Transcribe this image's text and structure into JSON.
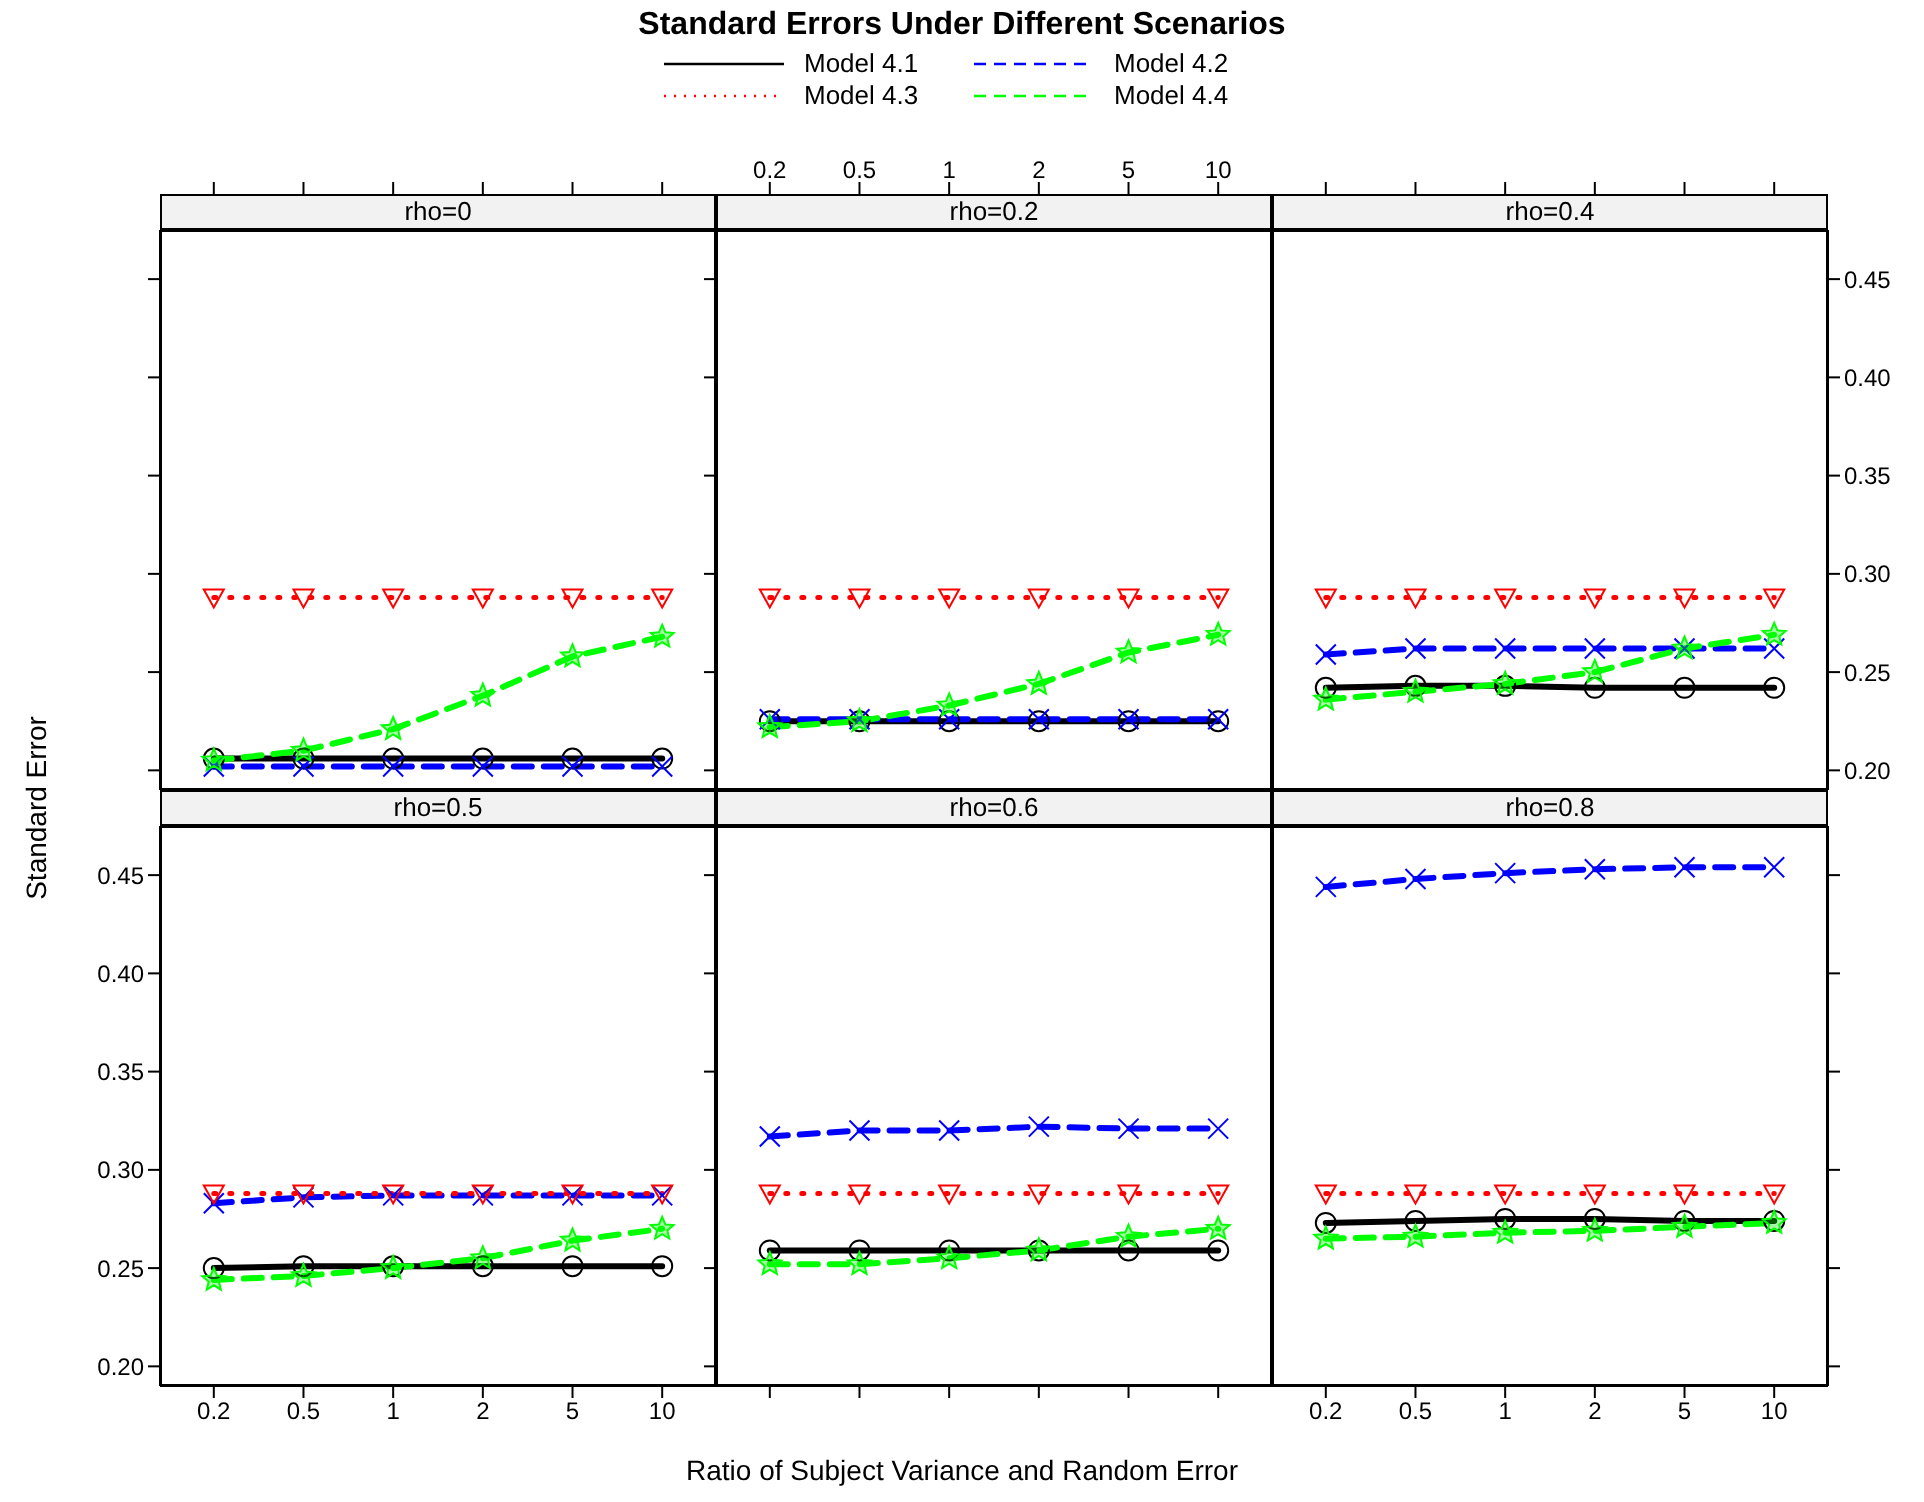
{
  "chart_data": [
    {
      "type": "line",
      "subtitle": "rho=0",
      "tick_labels": false,
      "categories": [
        "0.2",
        "0.5",
        "1",
        "2",
        "5",
        "10"
      ],
      "ylim": [
        0.19,
        0.475
      ],
      "yticks": [
        {
          "value": 0.2,
          "label": null
        },
        {
          "value": 0.25,
          "label": null
        },
        {
          "value": 0.3,
          "label": null
        },
        {
          "value": 0.35,
          "label": null
        },
        {
          "value": 0.4,
          "label": null
        },
        {
          "value": 0.45,
          "label": null
        }
      ],
      "series": [
        {
          "color": "#000000",
          "marker": "circle",
          "line_style": "solid",
          "values": [
            0.206,
            0.206,
            0.206,
            0.206,
            0.206,
            0.206
          ]
        },
        {
          "color": "#0000ff",
          "marker": "cross",
          "line_style": "dashed",
          "values": [
            0.202,
            0.202,
            0.202,
            0.202,
            0.202,
            0.202
          ]
        },
        {
          "color": "#ff0000",
          "marker": "triangle",
          "line_style": "dotted",
          "values": [
            0.288,
            0.288,
            0.288,
            0.288,
            0.288,
            0.288
          ]
        },
        {
          "color": "#00ff00",
          "marker": "star",
          "line_style": "dashed",
          "values": [
            0.205,
            0.21,
            0.221,
            0.238,
            0.258,
            0.268
          ]
        }
      ]
    },
    {
      "type": "line",
      "title": "Standard Errors Under Different Scenarios",
      "subtitle": "rho=0.2",
      "legend": "top",
      "tick_labels": "x",
      "categories": [
        "0.2",
        "0.5",
        "1",
        "2",
        "5",
        "10"
      ],
      "ylim": [
        0.19,
        0.475
      ],
      "yticks": [
        {
          "value": 0.2,
          "label": null
        },
        {
          "value": 0.25,
          "label": null
        },
        {
          "value": 0.3,
          "label": null
        },
        {
          "value": 0.35,
          "label": null
        },
        {
          "value": 0.4,
          "label": null
        },
        {
          "value": 0.45,
          "label": null
        }
      ],
      "series": [
        {
          "name": "Model 4.1",
          "color": "#000000",
          "marker": "circle",
          "line_style": "solid",
          "values": [
            0.225,
            0.225,
            0.225,
            0.225,
            0.225,
            0.225
          ]
        },
        {
          "name": "Model 4.2",
          "color": "#0000ff",
          "marker": "cross",
          "line_style": "dashed",
          "values": [
            0.226,
            0.226,
            0.226,
            0.226,
            0.226,
            0.226
          ]
        },
        {
          "name": "Model 4.3",
          "color": "#ff0000",
          "marker": "triangle",
          "line_style": "dotted",
          "values": [
            0.288,
            0.288,
            0.288,
            0.288,
            0.288,
            0.288
          ]
        },
        {
          "name": "Model 4.4",
          "color": "#00ff00",
          "marker": "star",
          "line_style": "dashed",
          "values": [
            0.222,
            0.225,
            0.233,
            0.244,
            0.26,
            0.269
          ]
        }
      ]
    },
    {
      "type": "line",
      "subtitle": "rho=0.4",
      "tick_labels": "y",
      "categories": [
        "0.2",
        "0.5",
        "1",
        "2",
        "5",
        "10"
      ],
      "ylim": [
        0.19,
        0.475
      ],
      "yticks": [
        {
          "value": 0.2,
          "label": "0.20"
        },
        {
          "value": 0.25,
          "label": "0.25"
        },
        {
          "value": 0.3,
          "label": "0.30"
        },
        {
          "value": 0.35,
          "label": "0.35"
        },
        {
          "value": 0.4,
          "label": "0.40"
        },
        {
          "value": 0.45,
          "label": "0.45"
        }
      ],
      "series": [
        {
          "color": "#000000",
          "marker": "circle",
          "line_style": "solid",
          "values": [
            0.242,
            0.243,
            0.243,
            0.242,
            0.242,
            0.242
          ]
        },
        {
          "color": "#0000ff",
          "marker": "cross",
          "line_style": "dashed",
          "values": [
            0.259,
            0.262,
            0.262,
            0.262,
            0.262,
            0.262
          ]
        },
        {
          "color": "#ff0000",
          "marker": "triangle",
          "line_style": "dotted",
          "values": [
            0.288,
            0.288,
            0.288,
            0.288,
            0.288,
            0.288
          ]
        },
        {
          "color": "#00ff00",
          "marker": "star",
          "line_style": "dashed",
          "values": [
            0.236,
            0.24,
            0.244,
            0.25,
            0.262,
            0.269
          ]
        }
      ]
    },
    {
      "type": "line",
      "subtitle": "rho=0.5",
      "ylabel": "Standard Error",
      "categories": [
        "0.2",
        "0.5",
        "1",
        "2",
        "5",
        "10"
      ],
      "ylim": [
        0.19,
        0.475
      ],
      "yticks": [
        {
          "value": 0.2,
          "label": "0.20"
        },
        {
          "value": 0.25,
          "label": "0.25"
        },
        {
          "value": 0.3,
          "label": "0.30"
        },
        {
          "value": 0.35,
          "label": "0.35"
        },
        {
          "value": 0.4,
          "label": "0.40"
        },
        {
          "value": 0.45,
          "label": "0.45"
        }
      ],
      "series": [
        {
          "color": "#000000",
          "marker": "circle",
          "line_style": "solid",
          "values": [
            0.25,
            0.251,
            0.251,
            0.251,
            0.251,
            0.251
          ]
        },
        {
          "color": "#0000ff",
          "marker": "cross",
          "line_style": "dashed",
          "values": [
            0.283,
            0.286,
            0.287,
            0.287,
            0.287,
            0.287
          ]
        },
        {
          "color": "#ff0000",
          "marker": "triangle",
          "line_style": "dotted",
          "values": [
            0.288,
            0.288,
            0.288,
            0.288,
            0.288,
            0.288
          ]
        },
        {
          "color": "#00ff00",
          "marker": "star",
          "line_style": "dashed",
          "values": [
            0.244,
            0.246,
            0.25,
            0.255,
            0.264,
            0.27
          ]
        }
      ]
    },
    {
      "type": "line",
      "subtitle": "rho=0.6",
      "xlabel": "Ratio of Subject Variance and Random Error",
      "tick_labels": false,
      "categories": [
        "0.2",
        "0.5",
        "1",
        "2",
        "5",
        "10"
      ],
      "ylim": [
        0.19,
        0.475
      ],
      "yticks": [
        {
          "value": 0.2,
          "label": null
        },
        {
          "value": 0.25,
          "label": null
        },
        {
          "value": 0.3,
          "label": null
        },
        {
          "value": 0.35,
          "label": null
        },
        {
          "value": 0.4,
          "label": null
        },
        {
          "value": 0.45,
          "label": null
        }
      ],
      "series": [
        {
          "color": "#000000",
          "marker": "circle",
          "line_style": "solid",
          "values": [
            0.259,
            0.259,
            0.259,
            0.259,
            0.259,
            0.259
          ]
        },
        {
          "color": "#0000ff",
          "marker": "cross",
          "line_style": "dashed",
          "values": [
            0.317,
            0.32,
            0.32,
            0.322,
            0.321,
            0.321
          ]
        },
        {
          "color": "#ff0000",
          "marker": "triangle",
          "line_style": "dotted",
          "values": [
            0.288,
            0.288,
            0.288,
            0.288,
            0.288,
            0.288
          ]
        },
        {
          "color": "#00ff00",
          "marker": "star",
          "line_style": "dashed",
          "values": [
            0.252,
            0.252,
            0.255,
            0.259,
            0.266,
            0.27
          ]
        }
      ]
    },
    {
      "type": "line",
      "subtitle": "rho=0.8",
      "tick_labels": "x",
      "categories": [
        "0.2",
        "0.5",
        "1",
        "2",
        "5",
        "10"
      ],
      "ylim": [
        0.19,
        0.475
      ],
      "yticks": [
        {
          "value": 0.2,
          "label": null
        },
        {
          "value": 0.25,
          "label": null
        },
        {
          "value": 0.3,
          "label": null
        },
        {
          "value": 0.35,
          "label": null
        },
        {
          "value": 0.4,
          "label": null
        },
        {
          "value": 0.45,
          "label": null
        }
      ],
      "series": [
        {
          "color": "#000000",
          "marker": "circle",
          "line_style": "solid",
          "values": [
            0.273,
            0.274,
            0.275,
            0.275,
            0.274,
            0.274
          ]
        },
        {
          "color": "#0000ff",
          "marker": "cross",
          "line_style": "dashed",
          "values": [
            0.444,
            0.448,
            0.451,
            0.453,
            0.454,
            0.454
          ]
        },
        {
          "color": "#ff0000",
          "marker": "triangle",
          "line_style": "dotted",
          "values": [
            0.288,
            0.288,
            0.288,
            0.288,
            0.288,
            0.288
          ]
        },
        {
          "color": "#00ff00",
          "marker": "star",
          "line_style": "dashed",
          "values": [
            0.265,
            0.266,
            0.268,
            0.269,
            0.271,
            0.273
          ]
        }
      ]
    }
  ]
}
